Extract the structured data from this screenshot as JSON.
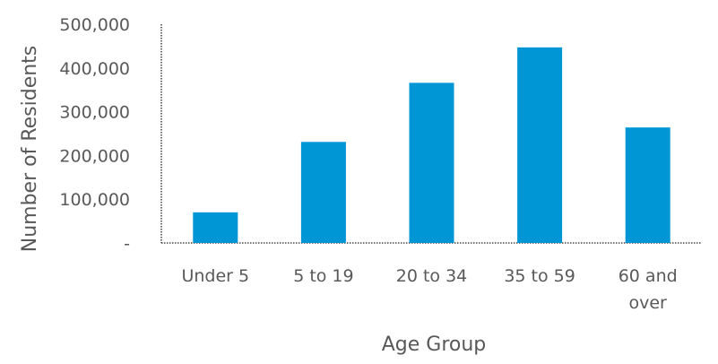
{
  "chart_data": {
    "type": "bar",
    "categories": [
      [
        "Under 5"
      ],
      [
        "5 to 19"
      ],
      [
        "20 to 34"
      ],
      [
        "35 to 59"
      ],
      [
        "60 and",
        "over"
      ]
    ],
    "values": [
      70000,
      231000,
      366000,
      447000,
      264000
    ],
    "xlabel": "Age Group",
    "ylabel": "Number of Residents",
    "ylim": [
      0,
      500000
    ],
    "yticks": [
      0,
      100000,
      200000,
      300000,
      400000,
      500000
    ],
    "ytick_labels": [
      "-",
      "100,000",
      "200,000",
      "300,000",
      "400,000",
      "500,000"
    ],
    "grid": false,
    "legend": "none",
    "bar_color": "#0096d6"
  }
}
